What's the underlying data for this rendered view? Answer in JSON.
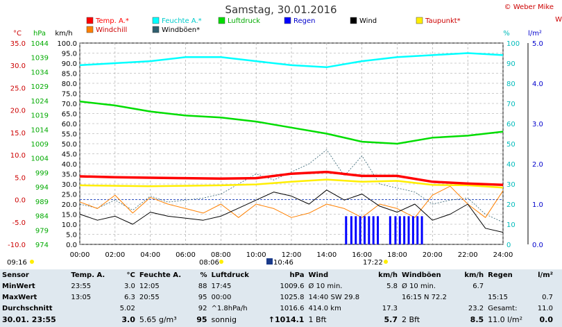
{
  "title": "Samstag, 30.01.2016",
  "copyright": "© Weber Mike",
  "corner_label": "W",
  "legend": [
    {
      "label": "Temp. A.*",
      "color": "#ff0000",
      "text_color": "#ff0000"
    },
    {
      "label": "Feuchte A.*",
      "color": "#00ffff",
      "text_color": "#00cccc"
    },
    {
      "label": "Luftdruck",
      "color": "#00dd00",
      "text_color": "#00aa00"
    },
    {
      "label": "Regen",
      "color": "#0000ff",
      "text_color": "#0000cc"
    },
    {
      "label": "Wind",
      "color": "#000000",
      "text_color": "#000000"
    },
    {
      "label": "Taupunkt*",
      "color": "#ffee00",
      "text_color": "#cc0000"
    },
    {
      "label": "Windchill",
      "color": "#ff8000",
      "text_color": "#cc0000"
    },
    {
      "label": "Windböen*",
      "color": "#2f5f6f",
      "text_color": "#000000"
    }
  ],
  "axis_headers": {
    "temp": "°C",
    "pressure": "hPa",
    "wind": "km/h",
    "humidity": "%",
    "rain": "l/m²"
  },
  "marker_times": {
    "sunrise": "09:16",
    "t1": "08:06",
    "t2": "10:46",
    "t3": "17:22"
  },
  "chart_data": {
    "type": "line",
    "x_ticks": [
      "00:00",
      "02:00",
      "04:00",
      "06:00",
      "08:00",
      "10:00",
      "12:00",
      "14:00",
      "16:00",
      "18:00",
      "20:00",
      "22:00",
      "24:00"
    ],
    "temp_ticks": [
      "35.0",
      "30.0",
      "25.0",
      "20.0",
      "15.0",
      "10.0",
      "5.0",
      "0.0",
      "-5.0",
      "-10.0"
    ],
    "pressure_ticks": [
      "1044",
      "1039",
      "1034",
      "1029",
      "1024",
      "1019",
      "1014",
      "1009",
      "1004",
      "999",
      "994",
      "989",
      "984",
      "979",
      "974"
    ],
    "wind_ticks": [
      "100.0",
      "95.0",
      "90.0",
      "85.0",
      "80.0",
      "75.0",
      "70.0",
      "65.0",
      "60.0",
      "55.0",
      "50.0",
      "45.0",
      "40.0",
      "35.0",
      "30.0",
      "25.0",
      "20.0",
      "15.0",
      "10.0",
      "5.0",
      "0.0"
    ],
    "humidity_ticks": [
      "100",
      "90",
      "80",
      "70",
      "60",
      "50",
      "40",
      "30",
      "20",
      "10",
      "0"
    ],
    "rain_ticks": [
      "5.0",
      "4.0",
      "3.0",
      "2.0",
      "1.0",
      "0.0"
    ],
    "ylim_temp": [
      -10,
      35
    ],
    "ylim_wind": [
      0,
      100
    ],
    "ylim_humidity": [
      0,
      100
    ],
    "ylim_rain": [
      0,
      5
    ],
    "series": [
      {
        "name": "Feuchte A.*",
        "axis": "humidity",
        "hours": [
          0,
          2,
          4,
          6,
          8,
          10,
          12,
          14,
          16,
          18,
          20,
          22,
          24
        ],
        "values": [
          89,
          90,
          91,
          93,
          93,
          91,
          89,
          88,
          91,
          93,
          94,
          95,
          94
        ]
      },
      {
        "name": "Luftdruck",
        "axis": "wind",
        "hours": [
          0,
          2,
          4,
          6,
          8,
          10,
          12,
          14,
          16,
          18,
          20,
          22,
          24
        ],
        "values": [
          71,
          69,
          66,
          64,
          63,
          61,
          58,
          55,
          51,
          50,
          53,
          54,
          56
        ]
      },
      {
        "name": "Temp. A.*",
        "axis": "temp",
        "hours": [
          0,
          2,
          4,
          6,
          8,
          10,
          12,
          14,
          16,
          18,
          20,
          22,
          24
        ],
        "values": [
          5.2,
          5.0,
          4.9,
          4.8,
          4.7,
          4.8,
          5.8,
          6.2,
          5.3,
          5.3,
          4.0,
          3.6,
          3.3
        ]
      },
      {
        "name": "Taupunkt*",
        "axis": "temp",
        "hours": [
          0,
          2,
          4,
          6,
          8,
          10,
          12,
          14,
          16,
          18,
          20,
          22,
          24
        ],
        "values": [
          3.2,
          3.1,
          3.0,
          3.1,
          3.2,
          3.4,
          4.0,
          4.5,
          4.0,
          4.2,
          3.3,
          3.2,
          2.7
        ]
      },
      {
        "name": "Windchill",
        "axis": "temp",
        "hours": [
          0,
          1,
          2,
          3,
          4,
          5,
          6,
          7,
          8,
          9,
          10,
          11,
          12,
          13,
          14,
          15,
          16,
          17,
          18,
          19,
          20,
          21,
          22,
          23,
          24
        ],
        "values": [
          -0.5,
          -2,
          1,
          -3,
          0.5,
          -1,
          -2,
          -3,
          -1,
          -4,
          -1,
          -2,
          -4,
          -3,
          -1,
          -2,
          -4,
          -1,
          -2,
          -4,
          1,
          3,
          -1,
          -4,
          2
        ]
      },
      {
        "name": "Wind",
        "axis": "wind",
        "hours": [
          0,
          1,
          2,
          3,
          4,
          5,
          6,
          7,
          8,
          9,
          10,
          11,
          12,
          13,
          14,
          15,
          16,
          17,
          18,
          19,
          20,
          21,
          22,
          23,
          24
        ],
        "values": [
          15,
          12,
          14,
          10,
          16,
          14,
          13,
          12,
          14,
          18,
          22,
          26,
          24,
          20,
          27,
          22,
          25,
          19,
          16,
          20,
          12,
          15,
          20,
          8,
          6
        ]
      },
      {
        "name": "Windböen*",
        "axis": "wind",
        "hours": [
          0,
          1,
          2,
          3,
          4,
          5,
          6,
          7,
          8,
          9,
          10,
          11,
          12,
          13,
          14,
          15,
          16,
          17,
          18,
          19,
          20,
          21,
          22,
          23,
          24
        ],
        "values": [
          20,
          18,
          22,
          17,
          24,
          21,
          22,
          23,
          25,
          30,
          35,
          32,
          36,
          40,
          47,
          34,
          44,
          30,
          28,
          26,
          20,
          22,
          23,
          15,
          11
        ]
      }
    ],
    "rain_bars_hours": [
      15.1,
      15.4,
      15.65,
      15.9,
      16.15,
      16.4,
      16.65,
      16.9,
      17.6,
      17.9,
      18.15,
      18.4,
      18.65,
      18.9,
      19.15,
      19.4
    ]
  },
  "stats": {
    "headers": [
      "Sensor",
      "Temp. A.",
      "°C",
      "Feuchte A.",
      "%",
      "Luftdruck",
      "hPa",
      "Wind",
      "km/h",
      "Windböen",
      "km/h",
      "Regen",
      "l/m²"
    ],
    "rows": [
      {
        "label": "MinWert",
        "cells": [
          "23:55",
          "3.0",
          "12:05",
          "88",
          "17:45",
          "1009.6",
          "Ø 10 min.",
          "5.8",
          "Ø 10 min.",
          "6.7",
          "",
          ""
        ]
      },
      {
        "label": "MaxWert",
        "cells": [
          "13:05",
          "6.3",
          "20:55",
          "95",
          "00:00",
          "1025.8",
          "14:40   SW 29.8",
          "",
          "16:15   N 72.2",
          "",
          "15:15",
          "0.7"
        ]
      },
      {
        "label": "Durchschnitt",
        "cells": [
          "",
          "5.02",
          "",
          "92",
          "^1.8hPa/h",
          "1016.6",
          "414.0 km",
          "17.3",
          "",
          "23.2",
          "Gesamt:",
          "11.0"
        ]
      }
    ],
    "current": {
      "label": "30.01. 23:55",
      "cells": [
        "",
        "3.0",
        "5.65 g/m³",
        "95",
        "sonnig",
        "↑1014.1",
        "1 Bft",
        "5.7",
        "2 Bft",
        "8.5",
        "11.0 l/m²",
        "0.0"
      ]
    }
  }
}
